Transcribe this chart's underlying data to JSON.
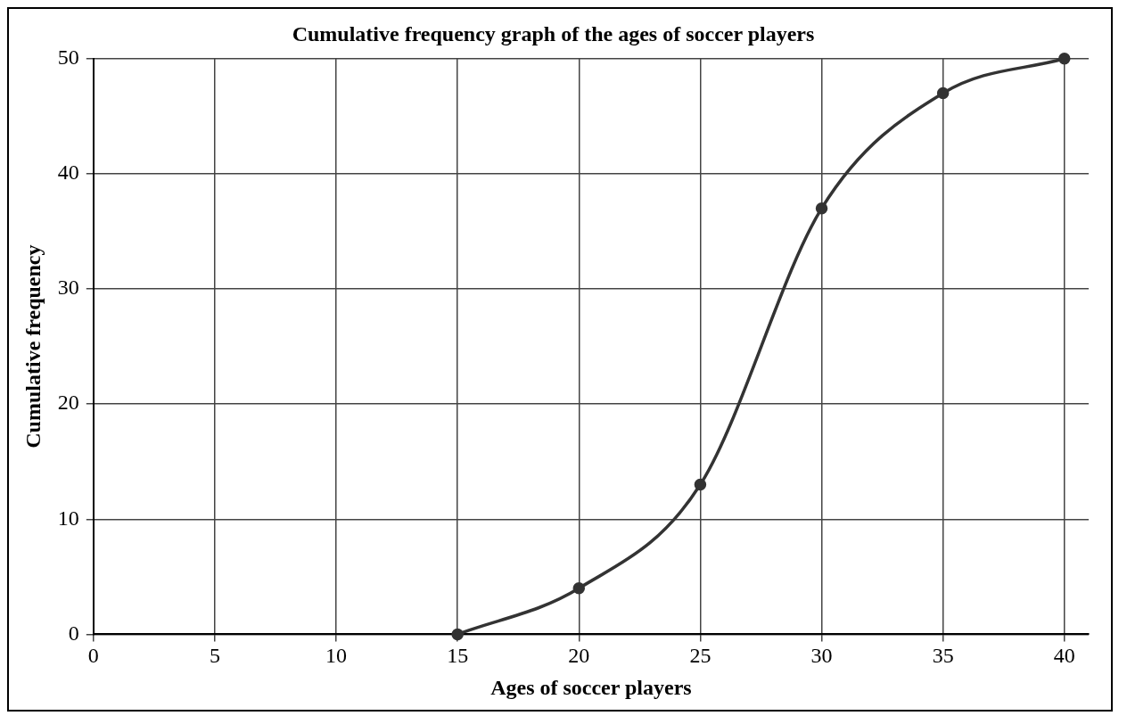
{
  "chart_data": {
    "type": "line",
    "title": "Cumulative frequency graph of the ages of soccer players",
    "xlabel": "Ages of soccer players",
    "ylabel": "Cumulative frequency",
    "x": [
      15,
      20,
      25,
      30,
      35,
      40
    ],
    "series": [
      {
        "color": "#333333",
        "values": [
          0,
          4,
          13,
          37,
          47,
          50
        ]
      }
    ],
    "xlim": [
      0,
      41
    ],
    "xticks": [
      0,
      5,
      10,
      15,
      20,
      25,
      30,
      35,
      40
    ],
    "ylim": [
      0,
      50
    ],
    "yticks": [
      0,
      10,
      20,
      30,
      40,
      50
    ],
    "grid": true,
    "legend": false,
    "marker": "circle",
    "line_style": "solid"
  }
}
